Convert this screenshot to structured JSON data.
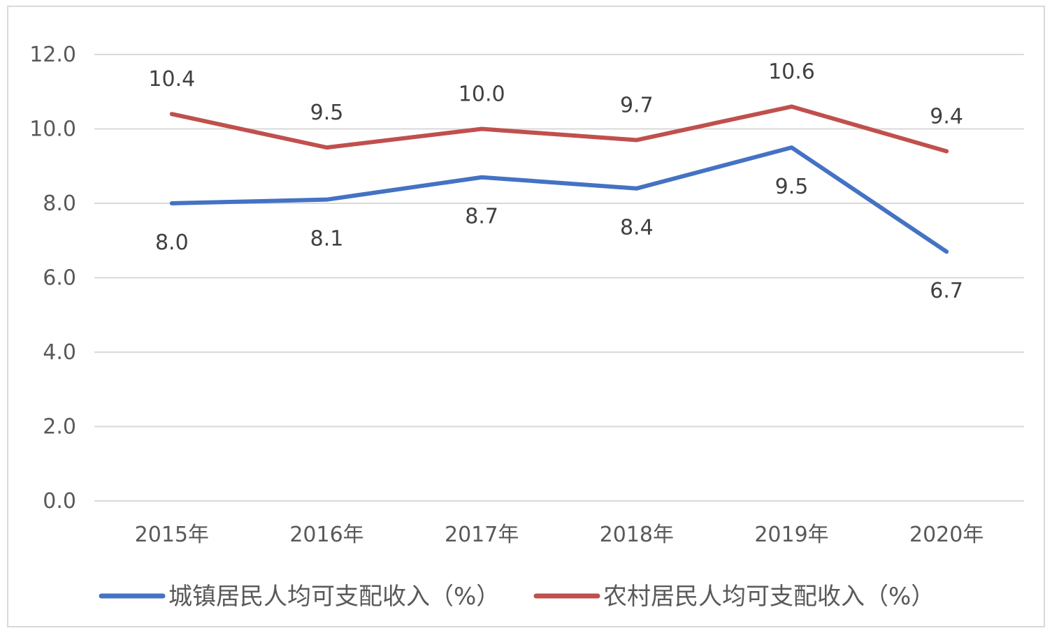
{
  "chart_data": {
    "type": "line",
    "title": "",
    "xlabel": "",
    "ylabel": "",
    "categories": [
      "2015年",
      "2016年",
      "2017年",
      "2018年",
      "2019年",
      "2020年"
    ],
    "ylim": [
      0,
      12
    ],
    "yticks": [
      "0.0",
      "2.0",
      "4.0",
      "6.0",
      "8.0",
      "10.0",
      "12.0"
    ],
    "grid": true,
    "legend_position": "bottom",
    "series": [
      {
        "name": "城镇居民人均可支配收入（%）",
        "color": "#4472c4",
        "values": [
          8.0,
          8.1,
          8.7,
          8.4,
          9.5,
          6.7
        ],
        "labels": [
          "8.0",
          "8.1",
          "8.7",
          "8.4",
          "9.5",
          "6.7"
        ],
        "label_position": "below"
      },
      {
        "name": "农村居民人均可支配收入（%）",
        "color": "#c0504d",
        "values": [
          10.4,
          9.5,
          10.0,
          9.7,
          10.6,
          9.4
        ],
        "labels": [
          "10.4",
          "9.5",
          "10.0",
          "9.7",
          "10.6",
          "9.4"
        ],
        "label_position": "above"
      }
    ]
  }
}
